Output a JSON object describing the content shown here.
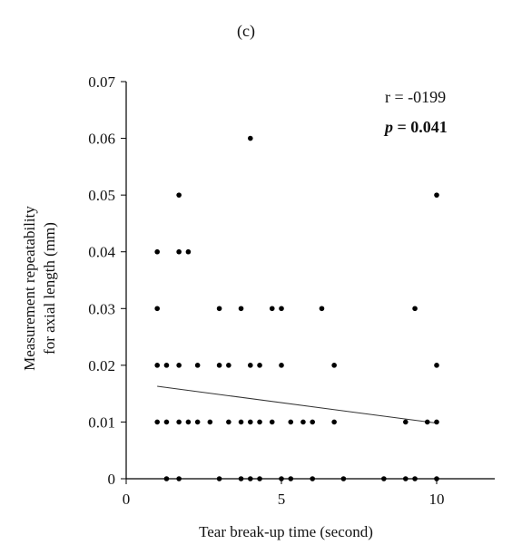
{
  "panel_label": "(c)",
  "chart_data": {
    "type": "scatter",
    "xlabel": "Tear break-up time (second)",
    "ylabel_lines": [
      "Measurement repeatability",
      "for axial length (mm)"
    ],
    "xlim": [
      0,
      12
    ],
    "ylim": [
      0,
      0.07
    ],
    "x_ticks": [
      0,
      5,
      10
    ],
    "y_ticks": [
      0,
      0.01,
      0.02,
      0.03,
      0.04,
      0.05,
      0.06,
      0.07
    ],
    "x_tick_labels": [
      "0",
      "5",
      "10"
    ],
    "y_tick_labels": [
      "0",
      "0.01",
      "0.02",
      "0.03",
      "0.04",
      "0.05",
      "0.06",
      "0.07"
    ],
    "grid": false,
    "annotations": {
      "r_text": "r = -0199",
      "p_label": "p",
      "p_value": " = 0.041"
    },
    "trendline": {
      "x": [
        1,
        10
      ],
      "y": [
        0.0163,
        0.0098
      ]
    },
    "points": [
      {
        "x": 4.0,
        "y": 0.06
      },
      {
        "x": 1.7,
        "y": 0.05
      },
      {
        "x": 10.0,
        "y": 0.05
      },
      {
        "x": 1.0,
        "y": 0.04
      },
      {
        "x": 1.7,
        "y": 0.04
      },
      {
        "x": 2.0,
        "y": 0.04
      },
      {
        "x": 1.0,
        "y": 0.03
      },
      {
        "x": 3.0,
        "y": 0.03
      },
      {
        "x": 3.7,
        "y": 0.03
      },
      {
        "x": 4.7,
        "y": 0.03
      },
      {
        "x": 5.0,
        "y": 0.03
      },
      {
        "x": 6.3,
        "y": 0.03
      },
      {
        "x": 9.3,
        "y": 0.03
      },
      {
        "x": 1.0,
        "y": 0.02
      },
      {
        "x": 1.3,
        "y": 0.02
      },
      {
        "x": 1.7,
        "y": 0.02
      },
      {
        "x": 2.3,
        "y": 0.02
      },
      {
        "x": 3.0,
        "y": 0.02
      },
      {
        "x": 3.3,
        "y": 0.02
      },
      {
        "x": 4.0,
        "y": 0.02
      },
      {
        "x": 4.3,
        "y": 0.02
      },
      {
        "x": 5.0,
        "y": 0.02
      },
      {
        "x": 6.7,
        "y": 0.02
      },
      {
        "x": 10.0,
        "y": 0.02
      },
      {
        "x": 1.0,
        "y": 0.01
      },
      {
        "x": 1.3,
        "y": 0.01
      },
      {
        "x": 1.7,
        "y": 0.01
      },
      {
        "x": 2.0,
        "y": 0.01
      },
      {
        "x": 2.3,
        "y": 0.01
      },
      {
        "x": 2.7,
        "y": 0.01
      },
      {
        "x": 3.3,
        "y": 0.01
      },
      {
        "x": 3.7,
        "y": 0.01
      },
      {
        "x": 4.0,
        "y": 0.01
      },
      {
        "x": 4.3,
        "y": 0.01
      },
      {
        "x": 4.7,
        "y": 0.01
      },
      {
        "x": 5.3,
        "y": 0.01
      },
      {
        "x": 5.7,
        "y": 0.01
      },
      {
        "x": 6.0,
        "y": 0.01
      },
      {
        "x": 6.7,
        "y": 0.01
      },
      {
        "x": 9.0,
        "y": 0.01
      },
      {
        "x": 9.7,
        "y": 0.01
      },
      {
        "x": 10.0,
        "y": 0.01
      },
      {
        "x": 1.3,
        "y": 0
      },
      {
        "x": 1.7,
        "y": 0
      },
      {
        "x": 3.0,
        "y": 0
      },
      {
        "x": 3.7,
        "y": 0
      },
      {
        "x": 4.0,
        "y": 0
      },
      {
        "x": 4.3,
        "y": 0
      },
      {
        "x": 5.0,
        "y": 0
      },
      {
        "x": 5.3,
        "y": 0
      },
      {
        "x": 6.0,
        "y": 0
      },
      {
        "x": 7.0,
        "y": 0
      },
      {
        "x": 8.3,
        "y": 0
      },
      {
        "x": 9.0,
        "y": 0
      },
      {
        "x": 9.3,
        "y": 0
      },
      {
        "x": 10.0,
        "y": 0
      }
    ]
  }
}
